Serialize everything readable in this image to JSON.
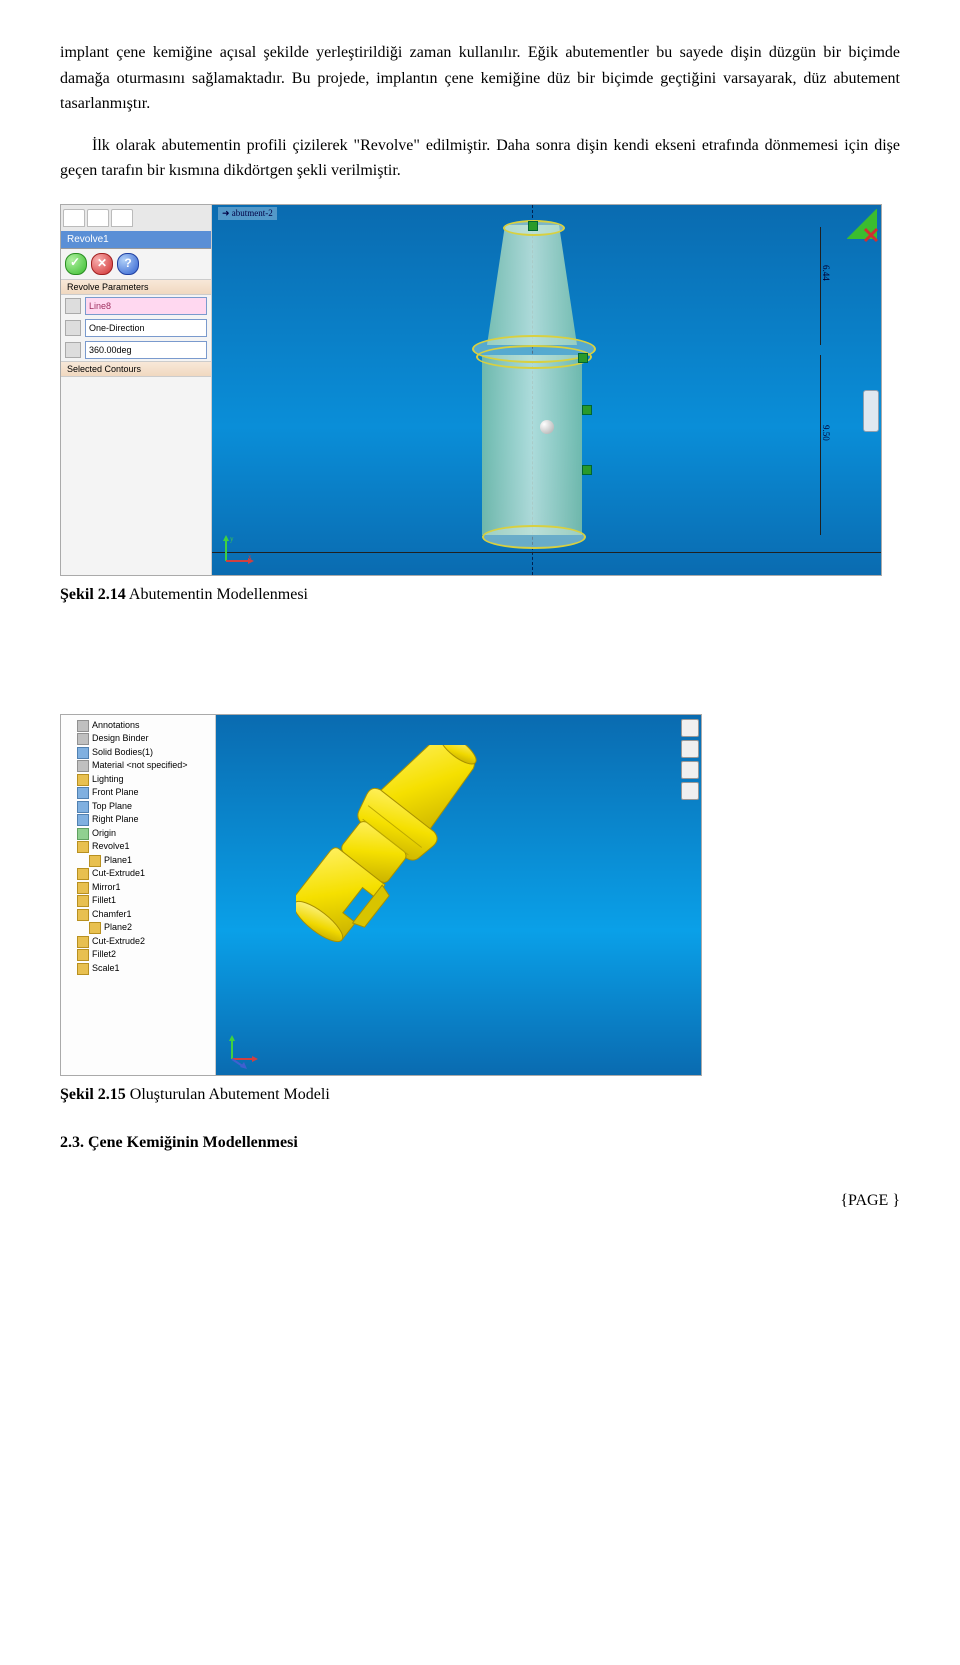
{
  "para1": "implant çene kemiğine açısal şekilde yerleştirildiği zaman kullanılır. Eğik abutementler bu sayede dişin düzgün bir biçimde damağa oturmasını sağlamaktadır. Bu projede, implantın çene kemiğine düz bir biçimde geçtiğini varsayarak, düz abutement tasarlanmıştır.",
  "para2": "İlk olarak abutementin profili çizilerek \"Revolve\" edilmiştir. Daha sonra dişin kendi ekseni etrafında dönmemesi için dişe geçen tarafın bir kısmına dikdörtgen şekli verilmiştir.",
  "fig1": {
    "caption_bold": "Şekil 2.14",
    "caption_rest": " Abutementin Modellenmesi",
    "feature_label": "abutment-2",
    "panel_title": "Revolve1",
    "section_params": "Revolve Parameters",
    "axis_line": "Line8",
    "direction": "One-Direction",
    "angle": "360.00deg",
    "section_contours": "Selected Contours",
    "dim1": "6.44",
    "dim2": "9.50",
    "colors": {
      "canvas_bg_top": "#0a6bb0",
      "canvas_bg_mid": "#0a8ed8",
      "body_fill": "#a8d8c6",
      "outline": "#d8d040",
      "axis": "#002050"
    }
  },
  "fig2": {
    "caption_bold": "Şekil 2.15",
    "caption_rest": " Oluşturulan Abutement Modeli",
    "tree": [
      {
        "lvl": 1,
        "ico": "gray",
        "label": "Annotations"
      },
      {
        "lvl": 1,
        "ico": "gray",
        "label": "Design Binder"
      },
      {
        "lvl": 1,
        "ico": "blue",
        "label": "Solid Bodies(1)"
      },
      {
        "lvl": 1,
        "ico": "gray",
        "label": "Material <not specified>"
      },
      {
        "lvl": 1,
        "ico": "yellow",
        "label": "Lighting"
      },
      {
        "lvl": 1,
        "ico": "blue",
        "label": "Front Plane"
      },
      {
        "lvl": 1,
        "ico": "blue",
        "label": "Top Plane"
      },
      {
        "lvl": 1,
        "ico": "blue",
        "label": "Right Plane"
      },
      {
        "lvl": 1,
        "ico": "green",
        "label": "Origin"
      },
      {
        "lvl": 1,
        "ico": "yellow",
        "label": "Revolve1"
      },
      {
        "lvl": 2,
        "ico": "yellow",
        "label": "Plane1"
      },
      {
        "lvl": 1,
        "ico": "yellow",
        "label": "Cut-Extrude1"
      },
      {
        "lvl": 1,
        "ico": "yellow",
        "label": "Mirror1"
      },
      {
        "lvl": 1,
        "ico": "yellow",
        "label": "Fillet1"
      },
      {
        "lvl": 1,
        "ico": "yellow",
        "label": "Chamfer1"
      },
      {
        "lvl": 2,
        "ico": "yellow",
        "label": "Plane2"
      },
      {
        "lvl": 1,
        "ico": "yellow",
        "label": "Cut-Extrude2"
      },
      {
        "lvl": 1,
        "ico": "yellow",
        "label": "Fillet2"
      },
      {
        "lvl": 1,
        "ico": "yellow",
        "label": "Scale1"
      }
    ],
    "model_color": "#f5e000",
    "model_shadow": "#c0b000",
    "canvas_bg": "#0a90d8"
  },
  "section_heading": "2.3. Çene Kemiğinin Modellenmesi",
  "page_number": "{PAGE  }"
}
